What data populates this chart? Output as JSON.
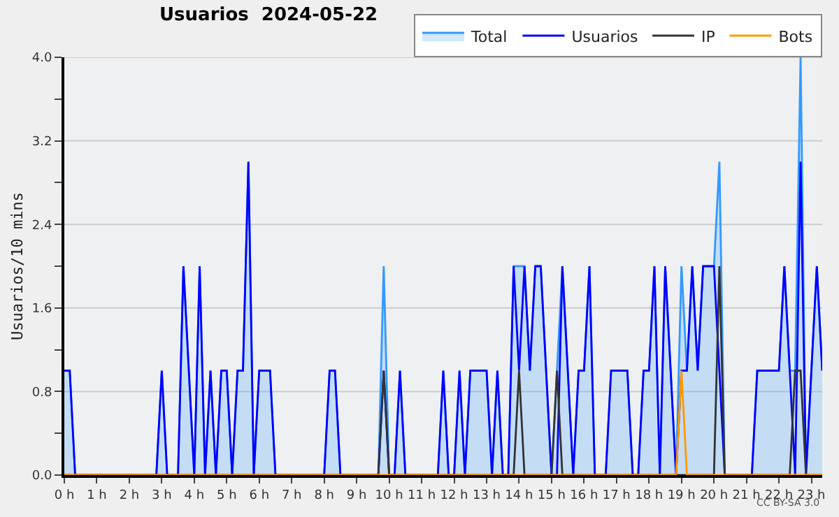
{
  "chart_data": {
    "type": "line",
    "title": "Usuarios  2024-05-22",
    "ylabel": "Usuarios/10 mins",
    "x": [
      0,
      0.167,
      0.333,
      0.5,
      0.667,
      0.833,
      1,
      1.167,
      1.333,
      1.5,
      1.667,
      1.833,
      2,
      2.167,
      2.333,
      2.5,
      2.667,
      2.833,
      3,
      3.167,
      3.333,
      3.5,
      3.667,
      3.833,
      4,
      4.167,
      4.333,
      4.5,
      4.667,
      4.833,
      5,
      5.167,
      5.333,
      5.5,
      5.667,
      5.833,
      6,
      6.167,
      6.333,
      6.5,
      6.667,
      6.833,
      7,
      7.167,
      7.333,
      7.5,
      7.667,
      7.833,
      8,
      8.167,
      8.333,
      8.5,
      8.667,
      8.833,
      9,
      9.167,
      9.333,
      9.5,
      9.667,
      9.833,
      10,
      10.167,
      10.333,
      10.5,
      10.667,
      10.833,
      11,
      11.167,
      11.333,
      11.5,
      11.667,
      11.833,
      12,
      12.167,
      12.333,
      12.5,
      12.667,
      12.833,
      13,
      13.167,
      13.333,
      13.5,
      13.667,
      13.833,
      14,
      14.167,
      14.333,
      14.5,
      14.667,
      14.833,
      15,
      15.167,
      15.333,
      15.5,
      15.667,
      15.833,
      16,
      16.167,
      16.333,
      16.5,
      16.667,
      16.833,
      17,
      17.167,
      17.333,
      17.5,
      17.667,
      17.833,
      18,
      18.167,
      18.333,
      18.5,
      18.667,
      18.833,
      19,
      19.167,
      19.333,
      19.5,
      19.667,
      19.833,
      20,
      20.167,
      20.333,
      20.5,
      20.667,
      20.833,
      21,
      21.167,
      21.333,
      21.5,
      21.667,
      21.833,
      22,
      22.167,
      22.333,
      22.5,
      22.667,
      22.833,
      23,
      23.167,
      23.333
    ],
    "series": [
      {
        "name": "Total",
        "type": "area",
        "color": "#3399ff",
        "values": [
          1,
          1,
          0,
          0,
          0,
          0,
          0,
          0,
          0,
          0,
          0,
          0,
          0,
          0,
          0,
          0,
          0,
          0,
          1,
          0,
          0,
          0,
          2,
          1,
          0,
          2,
          0,
          1,
          0,
          1,
          1,
          0,
          1,
          1,
          3,
          0,
          1,
          1,
          1,
          0,
          0,
          0,
          0,
          0,
          0,
          0,
          0,
          0,
          0,
          1,
          1,
          0,
          0,
          0,
          0,
          0,
          0,
          0,
          0,
          2,
          0,
          0,
          1,
          0,
          0,
          0,
          0,
          0,
          0,
          0,
          1,
          0,
          0,
          1,
          0,
          1,
          1,
          1,
          1,
          0,
          1,
          0,
          0,
          2,
          2,
          2,
          1,
          2,
          2,
          1,
          0,
          1,
          2,
          1,
          0,
          1,
          1,
          2,
          0,
          0,
          0,
          1,
          1,
          1,
          1,
          0,
          0,
          1,
          1,
          2,
          0,
          2,
          1,
          0,
          2,
          1,
          2,
          1,
          2,
          2,
          2,
          3,
          0,
          0,
          0,
          0,
          0,
          0,
          1,
          1,
          1,
          1,
          1,
          2,
          1,
          1,
          4,
          0,
          1,
          2,
          1
        ]
      },
      {
        "name": "Usuarios",
        "color": "#0000ff",
        "values": [
          1,
          1,
          0,
          0,
          0,
          0,
          0,
          0,
          0,
          0,
          0,
          0,
          0,
          0,
          0,
          0,
          0,
          0,
          1,
          0,
          0,
          0,
          2,
          1,
          0,
          2,
          0,
          1,
          0,
          1,
          1,
          0,
          1,
          1,
          3,
          0,
          1,
          1,
          1,
          0,
          0,
          0,
          0,
          0,
          0,
          0,
          0,
          0,
          0,
          1,
          1,
          0,
          0,
          0,
          0,
          0,
          0,
          0,
          0,
          1,
          0,
          0,
          1,
          0,
          0,
          0,
          0,
          0,
          0,
          0,
          1,
          0,
          0,
          1,
          0,
          1,
          1,
          1,
          1,
          0,
          1,
          0,
          0,
          2,
          1,
          2,
          1,
          2,
          2,
          1,
          0,
          0,
          2,
          1,
          0,
          1,
          1,
          2,
          0,
          0,
          0,
          1,
          1,
          1,
          1,
          0,
          0,
          1,
          1,
          2,
          0,
          2,
          1,
          0,
          1,
          1,
          2,
          1,
          2,
          2,
          2,
          1,
          0,
          0,
          0,
          0,
          0,
          0,
          1,
          1,
          1,
          1,
          1,
          2,
          1,
          0,
          3,
          0,
          1,
          2,
          1
        ]
      },
      {
        "name": "IP",
        "color": "#333333",
        "values": [
          0,
          0,
          0,
          0,
          0,
          0,
          0,
          0,
          0,
          0,
          0,
          0,
          0,
          0,
          0,
          0,
          0,
          0,
          0,
          0,
          0,
          0,
          0,
          0,
          0,
          0,
          0,
          0,
          0,
          0,
          0,
          0,
          0,
          0,
          0,
          0,
          0,
          0,
          0,
          0,
          0,
          0,
          0,
          0,
          0,
          0,
          0,
          0,
          0,
          0,
          0,
          0,
          0,
          0,
          0,
          0,
          0,
          0,
          0,
          1,
          0,
          0,
          0,
          0,
          0,
          0,
          0,
          0,
          0,
          0,
          0,
          0,
          0,
          0,
          0,
          0,
          0,
          0,
          0,
          0,
          0,
          0,
          0,
          0,
          1,
          0,
          0,
          0,
          0,
          0,
          0,
          1,
          0,
          0,
          0,
          0,
          0,
          0,
          0,
          0,
          0,
          0,
          0,
          0,
          0,
          0,
          0,
          0,
          0,
          0,
          0,
          0,
          0,
          0,
          0,
          0,
          0,
          0,
          0,
          0,
          0,
          2,
          0,
          0,
          0,
          0,
          0,
          0,
          0,
          0,
          0,
          0,
          0,
          0,
          0,
          1,
          1,
          0,
          0,
          0,
          0
        ]
      },
      {
        "name": "Bots",
        "color": "#ff9900",
        "values": [
          0,
          0,
          0,
          0,
          0,
          0,
          0,
          0,
          0,
          0,
          0,
          0,
          0,
          0,
          0,
          0,
          0,
          0,
          0,
          0,
          0,
          0,
          0,
          0,
          0,
          0,
          0,
          0,
          0,
          0,
          0,
          0,
          0,
          0,
          0,
          0,
          0,
          0,
          0,
          0,
          0,
          0,
          0,
          0,
          0,
          0,
          0,
          0,
          0,
          0,
          0,
          0,
          0,
          0,
          0,
          0,
          0,
          0,
          0,
          0,
          0,
          0,
          0,
          0,
          0,
          0,
          0,
          0,
          0,
          0,
          0,
          0,
          0,
          0,
          0,
          0,
          0,
          0,
          0,
          0,
          0,
          0,
          0,
          0,
          0,
          0,
          0,
          0,
          0,
          0,
          0,
          0,
          0,
          0,
          0,
          0,
          0,
          0,
          0,
          0,
          0,
          0,
          0,
          0,
          0,
          0,
          0,
          0,
          0,
          0,
          0,
          0,
          0,
          0,
          1,
          0,
          0,
          0,
          0,
          0,
          0,
          0,
          0,
          0,
          0,
          0,
          0,
          0,
          0,
          0,
          0,
          0,
          0,
          0,
          0,
          0,
          0,
          0,
          0,
          0,
          0
        ]
      }
    ],
    "xlim": [
      0,
      23.333
    ],
    "xticks": [
      {
        "value": 0,
        "label": "0 h"
      },
      {
        "value": 1,
        "label": "1 h"
      },
      {
        "value": 2,
        "label": "2 h"
      },
      {
        "value": 3,
        "label": "3 h"
      },
      {
        "value": 4,
        "label": "4 h"
      },
      {
        "value": 5,
        "label": "5 h"
      },
      {
        "value": 6,
        "label": "6 h"
      },
      {
        "value": 7,
        "label": "7 h"
      },
      {
        "value": 8,
        "label": "8 h"
      },
      {
        "value": 9,
        "label": "9 h"
      },
      {
        "value": 10,
        "label": "10 h"
      },
      {
        "value": 11,
        "label": "11 h"
      },
      {
        "value": 12,
        "label": "12 h"
      },
      {
        "value": 13,
        "label": "13 h"
      },
      {
        "value": 14,
        "label": "14 h"
      },
      {
        "value": 15,
        "label": "15 h"
      },
      {
        "value": 16,
        "label": "16 h"
      },
      {
        "value": 17,
        "label": "17 h"
      },
      {
        "value": 18,
        "label": "18 h"
      },
      {
        "value": 19,
        "label": "19 h"
      },
      {
        "value": 20,
        "label": "20 h"
      },
      {
        "value": 21,
        "label": "21 h"
      },
      {
        "value": 22,
        "label": "22 h"
      },
      {
        "value": 23,
        "label": "23 h"
      }
    ],
    "ylim": [
      0,
      4
    ],
    "yticks": [
      {
        "value": 0,
        "label": "0.0"
      },
      {
        "value": 0.4,
        "label": null
      },
      {
        "value": 0.8,
        "label": "0.8"
      },
      {
        "value": 1.2,
        "label": null
      },
      {
        "value": 1.6,
        "label": "1.6"
      },
      {
        "value": 2.0,
        "label": null
      },
      {
        "value": 2.4,
        "label": "2.4"
      },
      {
        "value": 2.8,
        "label": null
      },
      {
        "value": 3.2,
        "label": "3.2"
      },
      {
        "value": 3.6,
        "label": null
      },
      {
        "value": 4.0,
        "label": "4.0"
      }
    ],
    "grid": "y",
    "legend": "top right",
    "marker": "none",
    "line_style": "solid",
    "annotations": [
      "CC BY-SA 3.0"
    ]
  }
}
